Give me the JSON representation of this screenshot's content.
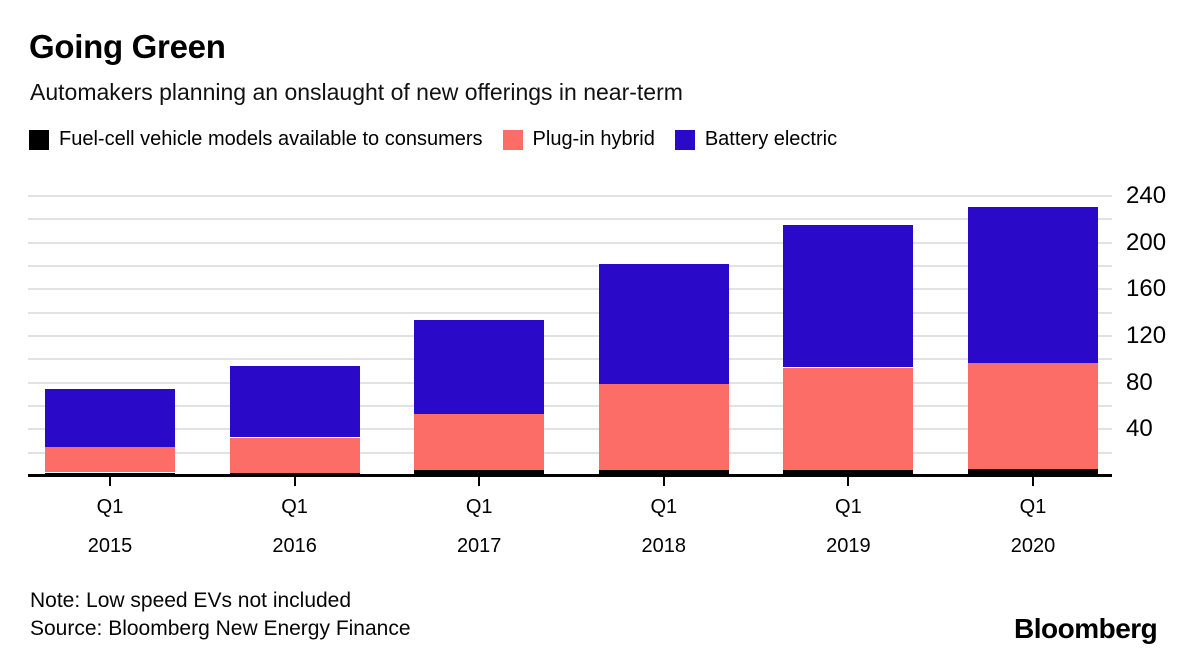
{
  "header": {
    "title": "Going Green",
    "subtitle": "Automakers planning an onslaught of new offerings in near-term"
  },
  "chart_data": {
    "type": "bar",
    "stacked": true,
    "title": "Going Green",
    "subtitle": "Automakers planning an onslaught of new offerings in near-term",
    "categories": [
      {
        "quarter": "Q1",
        "year": "2015"
      },
      {
        "quarter": "Q1",
        "year": "2016"
      },
      {
        "quarter": "Q1",
        "year": "2017"
      },
      {
        "quarter": "Q1",
        "year": "2018"
      },
      {
        "quarter": "Q1",
        "year": "2019"
      },
      {
        "quarter": "Q1",
        "year": "2020"
      }
    ],
    "series": [
      {
        "key": "fuel-cell",
        "name": "Fuel-cell vehicle models available to consumers",
        "color": "#000000",
        "values": [
          3,
          3,
          5,
          5,
          5,
          6
        ]
      },
      {
        "key": "plug-in-hybrid",
        "name": "Plug-in hybrid",
        "color": "#FB6D66",
        "values": [
          22,
          30,
          48,
          74,
          88,
          91
        ]
      },
      {
        "key": "battery-electric",
        "name": "Battery electric",
        "color": "#2A0AC8",
        "values": [
          50,
          61,
          81,
          103,
          122,
          134
        ]
      }
    ],
    "totals": [
      75,
      94,
      134,
      182,
      215,
      231
    ],
    "ylim": [
      0,
      240
    ],
    "grid_step": 20,
    "yticks_labeled": [
      "40",
      "80",
      "120",
      "160",
      "200",
      "240"
    ],
    "ytick_values": [
      40,
      80,
      120,
      160,
      200,
      240
    ],
    "grid": true,
    "axis_side": "right",
    "legend_position": "top",
    "gridline_color": "#e2e2e2",
    "axis_color": "#000000"
  },
  "footer": {
    "note": "Note: Low speed EVs not included",
    "source": "Source: Bloomberg New Energy Finance",
    "brand": "Bloomberg"
  }
}
